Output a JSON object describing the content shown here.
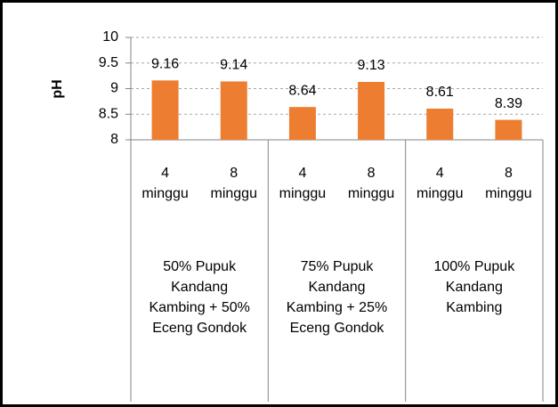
{
  "chart_data": {
    "type": "bar",
    "ylabel": "pH",
    "categories": [
      "4 minggu",
      "8 minggu",
      "4 minggu",
      "8 minggu",
      "4 minggu",
      "8 minggu"
    ],
    "groups": [
      "50% Pupuk Kandang Kambing + 50% Eceng Gondok",
      "75% Pupuk Kandang Kambing + 25% Eceng Gondok",
      "100% Pupuk Kandang Kambing"
    ],
    "values": [
      9.16,
      9.14,
      8.64,
      9.13,
      8.61,
      8.39
    ],
    "color": "#ed7d31",
    "ylim": [
      8,
      10
    ],
    "yticks": [
      8,
      8.5,
      9,
      9.5,
      10
    ],
    "grid": true
  }
}
